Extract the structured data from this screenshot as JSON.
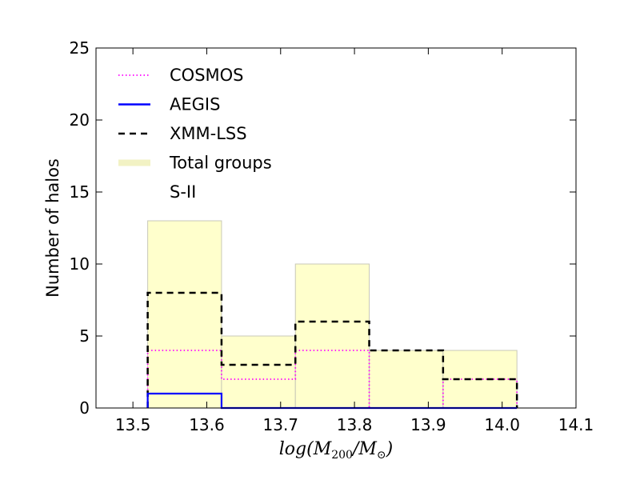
{
  "chart_data": {
    "type": "bar",
    "subtype": "step-histogram",
    "title": "",
    "xlabel": "log(M200/M⊙)",
    "ylabel": "Number of halos",
    "xlim": [
      13.45,
      14.1
    ],
    "ylim": [
      0,
      25
    ],
    "xticks": [
      "13.5",
      "13.6",
      "13.7",
      "13.8",
      "13.9",
      "14.0",
      "14.1"
    ],
    "yticks": [
      "0",
      "5",
      "10",
      "15",
      "20",
      "25"
    ],
    "bin_edges": [
      13.52,
      13.62,
      13.72,
      13.82,
      13.92,
      14.02
    ],
    "legend_position": "upper-left",
    "grid": false,
    "series": [
      {
        "name": "COSMOS",
        "values": [
          4,
          2,
          4,
          0,
          2
        ],
        "color": "#ff00ff",
        "style": "dotted"
      },
      {
        "name": "AEGIS",
        "values": [
          1,
          0,
          0,
          0,
          0
        ],
        "color": "#0000ff",
        "style": "solid"
      },
      {
        "name": "XMM-LSS",
        "values": [
          8,
          3,
          6,
          4,
          2
        ],
        "color": "#000000",
        "style": "dashed"
      },
      {
        "name": "Total groups",
        "values": [
          13,
          5,
          10,
          4,
          4
        ],
        "color": "#ffffcc",
        "style": "filled"
      },
      {
        "name": "S-II",
        "values": [
          0,
          0,
          0,
          0,
          0
        ],
        "color": "#ffffff",
        "style": "solid"
      }
    ]
  }
}
